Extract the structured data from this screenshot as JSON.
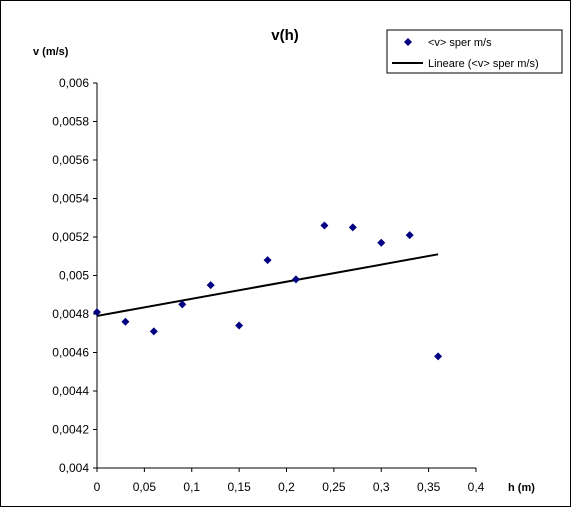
{
  "chart_data": {
    "type": "scatter",
    "title": "v(h)",
    "xlabel": "h (m)",
    "ylabel": "v (m/s)",
    "xlim": [
      0,
      0.4
    ],
    "ylim": [
      0.004,
      0.006
    ],
    "x_ticks": [
      0,
      0.05,
      0.1,
      0.15,
      0.2,
      0.25,
      0.3,
      0.35,
      0.4
    ],
    "x_tick_labels": [
      "0",
      "0,05",
      "0,1",
      "0,15",
      "0,2",
      "0,25",
      "0,3",
      "0,35",
      "0,4"
    ],
    "y_ticks": [
      0.004,
      0.0042,
      0.0044,
      0.0046,
      0.0048,
      0.005,
      0.0052,
      0.0054,
      0.0056,
      0.0058,
      0.006
    ],
    "y_tick_labels": [
      "0,004",
      "0,0042",
      "0,0044",
      "0,0046",
      "0,0048",
      "0,005",
      "0,0052",
      "0,0054",
      "0,0056",
      "0,0058",
      "0,006"
    ],
    "grid": false,
    "legend_position": "top-right",
    "series": [
      {
        "name": "<v> sper m/s",
        "kind": "scatter",
        "marker": "diamond",
        "color": "#000080",
        "x": [
          0,
          0.03,
          0.06,
          0.09,
          0.12,
          0.15,
          0.18,
          0.21,
          0.24,
          0.27,
          0.3,
          0.33,
          0.36
        ],
        "y": [
          0.00481,
          0.00476,
          0.00471,
          0.00485,
          0.00495,
          0.00474,
          0.00508,
          0.00498,
          0.00526,
          0.00525,
          0.00517,
          0.00521,
          0.00458
        ]
      },
      {
        "name": "Lineare (<v> sper m/s)",
        "kind": "trendline",
        "color": "#000000",
        "x": [
          0,
          0.36
        ],
        "y": [
          0.00479,
          0.00511
        ]
      }
    ]
  }
}
